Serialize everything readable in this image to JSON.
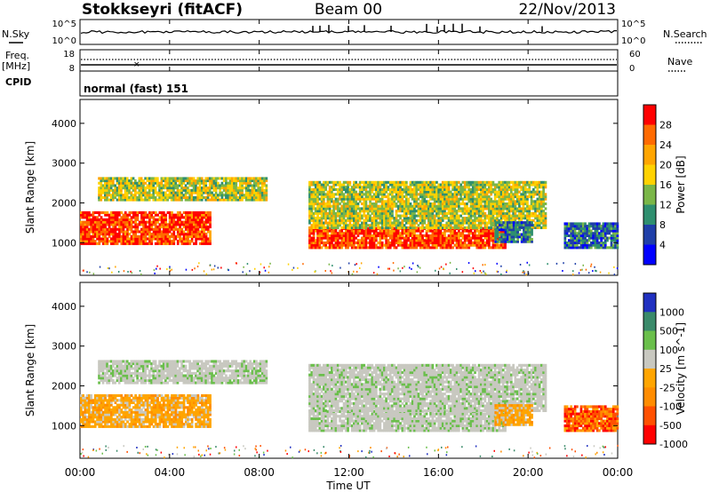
{
  "header": {
    "title": "Stokkseyri (fitACF)",
    "beam": "Beam 00",
    "date": "22/Nov/2013"
  },
  "aux_panels": {
    "nsky_label": "N.Sky",
    "nsearch_label": "N.Search",
    "noise_ticks": [
      "10^5",
      "10^0"
    ],
    "freq_label_1": "Freq.",
    "freq_label_2": "[MHz]",
    "freq_ticks": [
      "18",
      "8"
    ],
    "nave_label": "Nave",
    "nave_ticks": [
      "60",
      "0"
    ],
    "cpid_label": "CPID",
    "cpid_value": "normal (fast) 151"
  },
  "x_axis": {
    "label": "Time UT",
    "ticks": [
      "00:00",
      "04:00",
      "08:00",
      "12:00",
      "16:00",
      "20:00",
      "00:00"
    ]
  },
  "chart_data": [
    {
      "type": "heatmap",
      "panel": "power",
      "ylabel": "Slant Range [km]",
      "yticks": [
        1000,
        2000,
        3000,
        4000
      ],
      "ylim": [
        180,
        4600
      ],
      "xlim_hours": [
        0,
        24
      ],
      "colorbar": {
        "label": "Power [dB]",
        "ticks": [
          "28",
          "24",
          "20",
          "16",
          "12",
          "8",
          "4"
        ],
        "colors": [
          "#ff0000",
          "#ff6a00",
          "#ffa500",
          "#ffd200",
          "#7ab648",
          "#2f8f6f",
          "#1f3fa8",
          "#0000ff"
        ]
      },
      "regions": [
        {
          "t0": 0.0,
          "t1": 5.8,
          "r0": 950,
          "r1": 1750,
          "level": "high"
        },
        {
          "t0": 0.8,
          "t1": 8.3,
          "r0": 2050,
          "r1": 2650,
          "level": "medium"
        },
        {
          "t0": 10.2,
          "t1": 19.0,
          "r0": 850,
          "r1": 1350,
          "level": "high"
        },
        {
          "t0": 10.2,
          "t1": 20.8,
          "r0": 1350,
          "r1": 2500,
          "level": "medium"
        },
        {
          "t0": 18.5,
          "t1": 20.2,
          "r0": 1000,
          "r1": 1500,
          "level": "low"
        },
        {
          "t0": 21.6,
          "t1": 24.0,
          "r0": 850,
          "r1": 1500,
          "level": "low"
        }
      ]
    },
    {
      "type": "heatmap",
      "panel": "velocity",
      "ylabel": "Slant Range [km]",
      "yticks": [
        1000,
        2000,
        3000,
        4000
      ],
      "ylim": [
        180,
        4600
      ],
      "xlim_hours": [
        0,
        24
      ],
      "colorbar": {
        "label": "Velocity [m s^-1]",
        "ticks": [
          "1000",
          "500",
          "100",
          "25",
          "-25",
          "-100",
          "-500",
          "-1000"
        ],
        "colors": [
          "#2030c0",
          "#3a8a6a",
          "#6abf4b",
          "#c8c8c0",
          "#ffa500",
          "#ff8c00",
          "#ff5000",
          "#ff0000"
        ]
      },
      "regions": [
        {
          "t0": 0.0,
          "t1": 5.8,
          "r0": 950,
          "r1": 1750,
          "level": "negative"
        },
        {
          "t0": 0.8,
          "t1": 8.3,
          "r0": 2050,
          "r1": 2650,
          "level": "ground"
        },
        {
          "t0": 10.2,
          "t1": 19.0,
          "r0": 850,
          "r1": 1350,
          "level": "ground"
        },
        {
          "t0": 10.2,
          "t1": 20.8,
          "r0": 1350,
          "r1": 2500,
          "level": "ground"
        },
        {
          "t0": 18.5,
          "t1": 20.2,
          "r0": 1000,
          "r1": 1500,
          "level": "negative"
        },
        {
          "t0": 21.6,
          "t1": 24.0,
          "r0": 850,
          "r1": 1500,
          "level": "strong-negative"
        }
      ]
    }
  ]
}
